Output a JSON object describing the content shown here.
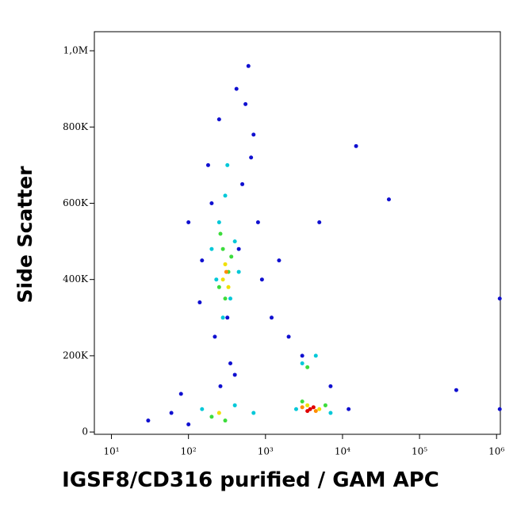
{
  "chart_data": {
    "type": "scatter",
    "xlabel": "IGSF8/CD316 purified / GAM APC",
    "ylabel": "Side Scatter",
    "xscale": "log",
    "xlim": [
      6,
      1120000
    ],
    "ylim": [
      -6000,
      1050000
    ],
    "xticks": [
      {
        "value": 10,
        "label": "10¹"
      },
      {
        "value": 100,
        "label": "10²"
      },
      {
        "value": 1000,
        "label": "10³"
      },
      {
        "value": 10000,
        "label": "10⁴"
      },
      {
        "value": 100000,
        "label": "10⁵"
      },
      {
        "value": 1000000,
        "label": "10⁶"
      }
    ],
    "yticks": [
      0,
      {
        "value": 200000,
        "label": "200K"
      },
      {
        "value": 400000,
        "label": "400K"
      },
      {
        "value": 600000,
        "label": "600K"
      },
      {
        "value": 800000,
        "label": "800K"
      },
      {
        "value": 1000000,
        "label": "1,0M"
      }
    ],
    "series": [
      {
        "color": "#1010d0",
        "x": [
          180,
          250,
          420,
          600,
          700,
          150,
          500,
          800,
          320,
          220,
          140,
          900,
          1200,
          2000,
          3000,
          15000,
          40000,
          80,
          60,
          100,
          400,
          350,
          260,
          1500,
          5000,
          7000,
          30,
          200,
          550,
          650,
          1100000,
          1100000,
          300000,
          12000,
          100,
          450
        ],
        "values": [
          700000,
          820000,
          900000,
          960000,
          780000,
          450000,
          650000,
          550000,
          300000,
          250000,
          340000,
          400000,
          300000,
          250000,
          200000,
          750000,
          610000,
          100000,
          50000,
          20000,
          150000,
          180000,
          120000,
          450000,
          550000,
          120000,
          30000,
          600000,
          860000,
          720000,
          60000,
          350000,
          110000,
          60000,
          550000,
          480000
        ]
      },
      {
        "color": "#00c8d8",
        "x": [
          250,
          300,
          200,
          400,
          350,
          230,
          280,
          450,
          150,
          400,
          700,
          3000,
          4500,
          2500,
          7000,
          320
        ],
        "values": [
          550000,
          620000,
          480000,
          500000,
          350000,
          400000,
          300000,
          420000,
          60000,
          70000,
          50000,
          180000,
          200000,
          60000,
          50000,
          700000
        ]
      },
      {
        "color": "#3cdc3c",
        "x": [
          280,
          330,
          250,
          300,
          360,
          260,
          200,
          300,
          3500,
          3000,
          6000
        ],
        "values": [
          480000,
          420000,
          380000,
          350000,
          460000,
          520000,
          40000,
          30000,
          170000,
          80000,
          70000
        ]
      },
      {
        "color": "#f0e000",
        "x": [
          300,
          330,
          280,
          250,
          3500,
          5000
        ],
        "values": [
          440000,
          380000,
          400000,
          50000,
          70000,
          60000
        ]
      },
      {
        "color": "#ff8c00",
        "x": [
          3000,
          4500,
          310
        ],
        "values": [
          65000,
          55000,
          420000
        ]
      },
      {
        "color": "#e00000",
        "x": [
          3800,
          4200,
          3500
        ],
        "values": [
          60000,
          65000,
          55000
        ]
      }
    ]
  }
}
